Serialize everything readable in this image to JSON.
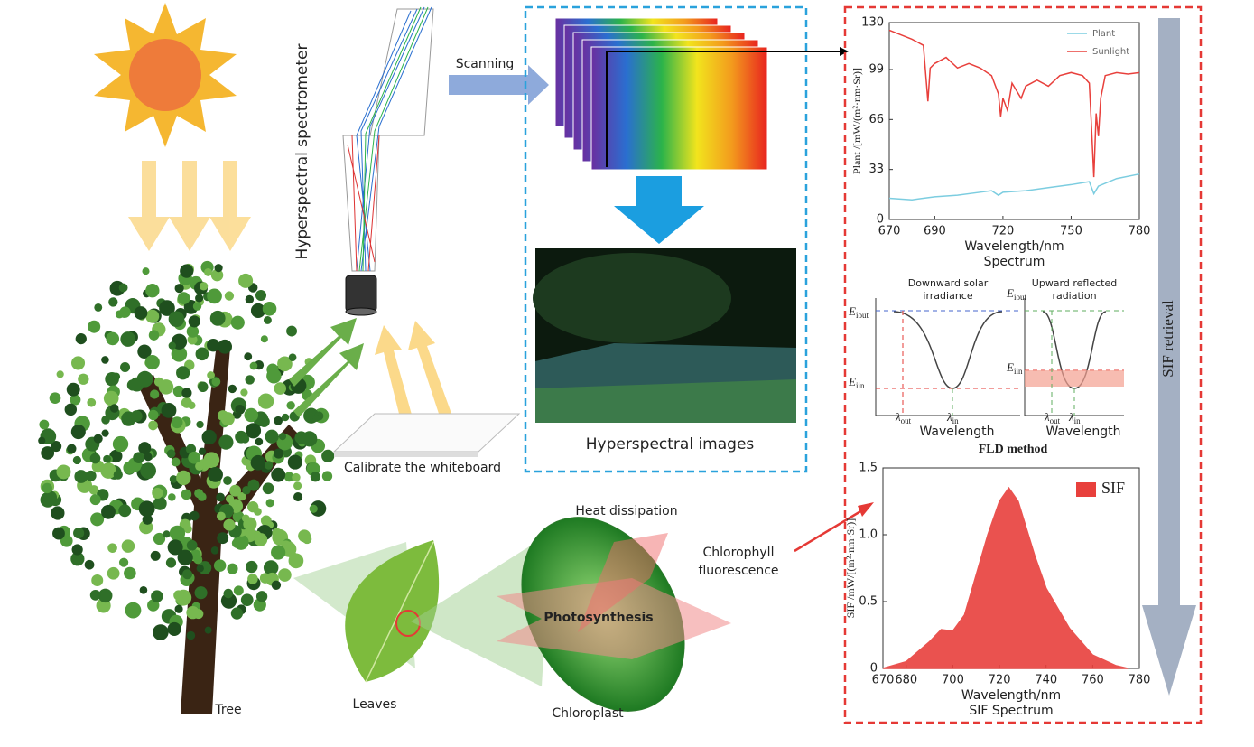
{
  "diagram": {
    "tree": "Tree",
    "leaves": "Leaves",
    "chloroplast": "Chloroplast",
    "heat": "Heat dissipation",
    "photosynthesis": "Photosynthesis",
    "fluorescence": [
      "Chlorophyll",
      "fluorescence"
    ],
    "spectrometer": "Hyperspectral spectrometer",
    "scanning": "Scanning",
    "whiteboard": "Calibrate the whiteboard",
    "images": "Hyperspectral images",
    "retrieval": "SIF retrieval",
    "fld": {
      "title": "FLD method",
      "left_title": [
        "Downward solar",
        "irradiance"
      ],
      "right_title": [
        "Upward reflected",
        "radiation"
      ],
      "left_xlabel": "Wavelength",
      "right_xlabel": "Wavelength",
      "E": "E",
      "lambda": "λ",
      "out": "out",
      "in": "in",
      "iout": "iout",
      "iin": "iin"
    }
  },
  "chart_data": [
    {
      "type": "line",
      "title": "Spectrum",
      "xlabel": "Wavelength/nm",
      "ylabel": "Plant /[mW/(m²·nm·Sr)]",
      "xlim": [
        670,
        780
      ],
      "xticks": [
        670,
        690,
        720,
        750,
        780
      ],
      "ylim": [
        0,
        130
      ],
      "yticks": [
        0,
        33,
        66,
        99,
        130
      ],
      "legend": "upper right",
      "series": [
        {
          "name": "Plant",
          "color": "#7ccde0",
          "x": [
            670,
            680,
            690,
            700,
            710,
            715,
            718,
            720,
            730,
            740,
            750,
            758,
            760,
            762,
            770,
            780
          ],
          "values": [
            14,
            13,
            15,
            16,
            18,
            19,
            16,
            18,
            19,
            21,
            23,
            25,
            17,
            22,
            27,
            30
          ]
        },
        {
          "name": "Sunlight",
          "color": "#e8403c",
          "x": [
            670,
            675,
            680,
            685,
            687,
            688,
            690,
            695,
            700,
            705,
            710,
            715,
            718,
            719,
            720,
            722,
            724,
            728,
            730,
            735,
            740,
            745,
            750,
            755,
            758,
            759,
            760,
            761,
            762,
            763,
            765,
            770,
            775,
            780
          ],
          "values": [
            125,
            122,
            119,
            115,
            78,
            100,
            103,
            107,
            100,
            103,
            100,
            95,
            83,
            68,
            80,
            72,
            90,
            80,
            88,
            92,
            88,
            95,
            97,
            95,
            90,
            60,
            28,
            70,
            55,
            80,
            95,
            97,
            96,
            97
          ]
        }
      ]
    },
    {
      "type": "area",
      "title": "SIF Spectrum",
      "xlabel": "Wavelength/nm",
      "ylabel": "SIF /mW/[(m²·nm·Sr)]",
      "xlim": [
        670,
        780
      ],
      "xticks": [
        670,
        680,
        700,
        720,
        740,
        760,
        780
      ],
      "ylim": [
        0,
        1.5
      ],
      "yticks": [
        0,
        0.5,
        {
          "value": 1,
          "label": "1.0"
        },
        1.5
      ],
      "legend": "upper right",
      "series": [
        {
          "name": "SIF",
          "color": "#e8403c",
          "x": [
            670,
            680,
            690,
            695,
            700,
            705,
            710,
            715,
            720,
            724,
            728,
            735,
            740,
            750,
            760,
            770,
            775
          ],
          "values": [
            0,
            0.05,
            0.2,
            0.29,
            0.28,
            0.4,
            0.7,
            1.0,
            1.25,
            1.35,
            1.25,
            0.85,
            0.6,
            0.3,
            0.1,
            0.02,
            0
          ]
        }
      ]
    }
  ]
}
